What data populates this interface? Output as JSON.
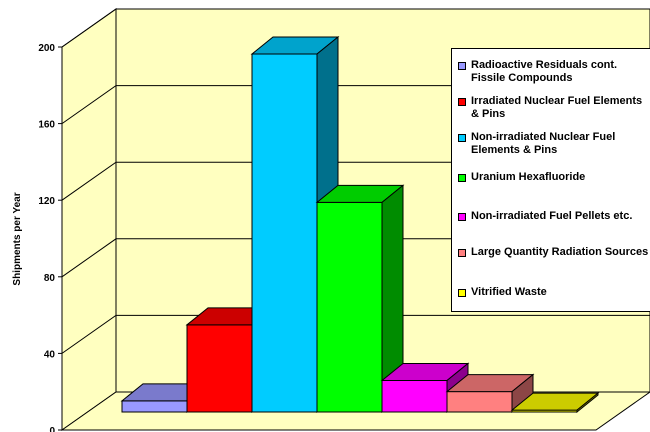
{
  "chart_data": {
    "type": "bar",
    "ylabel": "Shipments per Year",
    "ylim": [
      0,
      200
    ],
    "yticks": [
      0,
      40,
      80,
      120,
      160,
      200
    ],
    "grid": true,
    "legend_position": "right",
    "background": "#FFFFC0",
    "series": [
      {
        "name": "Radioactive Residuals cont. Fissile Compounds",
        "value": 6,
        "color": "#9999FF"
      },
      {
        "name": "Irradiated Nuclear Fuel Elements & Pins",
        "value": 47,
        "color": "#FF0000"
      },
      {
        "name": "Non-irradiated Nuclear Fuel Elements & Pins",
        "value": 193,
        "color": "#00CCFF"
      },
      {
        "name": "Uranium Hexafluoride",
        "value": 113,
        "color": "#00FF00"
      },
      {
        "name": "Non-irradiated Fuel Pellets etc.",
        "value": 17,
        "color": "#FF00FF"
      },
      {
        "name": "Large Quantity Radiation Sources",
        "value": 11,
        "color": "#FF8080"
      },
      {
        "name": "Vitrified Waste",
        "value": 1,
        "color": "#FFFF00"
      }
    ]
  }
}
